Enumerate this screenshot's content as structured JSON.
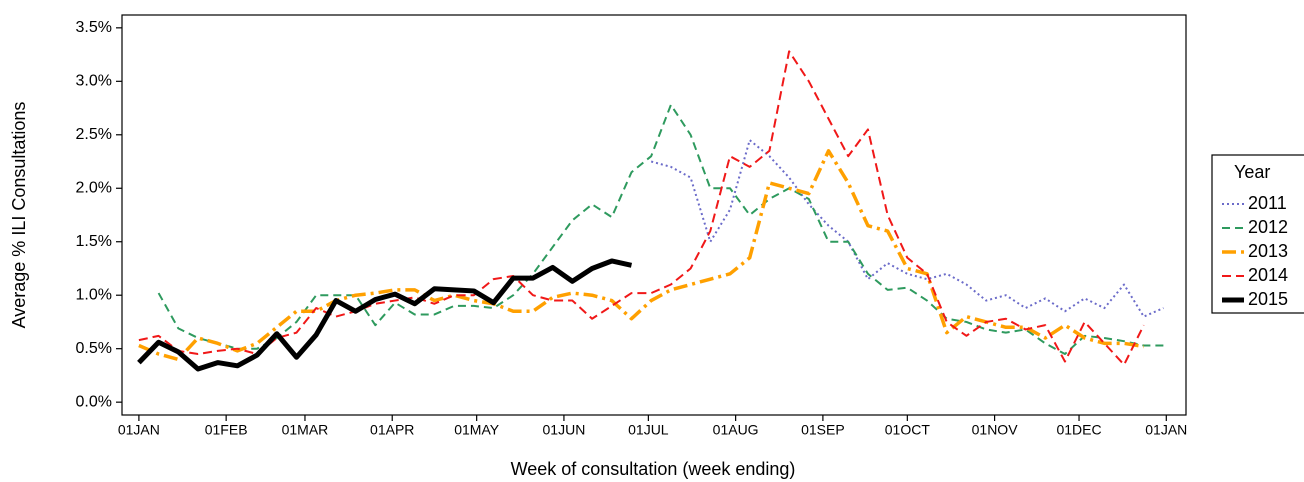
{
  "chart_data": {
    "type": "line",
    "xlabel": "Week of consultation (week ending)",
    "ylabel": "Average % ILI Consultations",
    "legend_title": "Year",
    "legend": "right",
    "x": [
      0,
      7,
      14,
      21,
      28,
      35,
      42,
      49,
      56,
      63,
      70,
      77,
      84,
      91,
      98,
      105,
      112,
      119,
      126,
      133,
      140,
      147,
      154,
      161,
      168,
      175,
      182,
      189,
      196,
      203,
      210,
      217,
      224,
      231,
      238,
      245,
      252,
      259,
      266,
      273,
      280,
      287,
      294,
      301,
      308,
      315,
      322,
      329,
      336,
      343,
      350,
      357,
      364
    ],
    "xlim": [
      -6,
      372
    ],
    "xticks": [
      {
        "value": 0,
        "label": "01JAN"
      },
      {
        "value": 31,
        "label": "01FEB"
      },
      {
        "value": 59,
        "label": "01MAR"
      },
      {
        "value": 90,
        "label": "01APR"
      },
      {
        "value": 120,
        "label": "01MAY"
      },
      {
        "value": 151,
        "label": "01JUN"
      },
      {
        "value": 181,
        "label": "01JUL"
      },
      {
        "value": 212,
        "label": "01AUG"
      },
      {
        "value": 243,
        "label": "01SEP"
      },
      {
        "value": 273,
        "label": "01OCT"
      },
      {
        "value": 304,
        "label": "01NOV"
      },
      {
        "value": 334,
        "label": "01DEC"
      },
      {
        "value": 365,
        "label": "01JAN"
      }
    ],
    "ylim": [
      -0.12,
      3.62
    ],
    "yticks": [
      {
        "value": 0,
        "label": "0.0%"
      },
      {
        "value": 0.5,
        "label": "0.5%"
      },
      {
        "value": 1,
        "label": "1.0%"
      },
      {
        "value": 1.5,
        "label": "1.5%"
      },
      {
        "value": 2,
        "label": "2.0%"
      },
      {
        "value": 2.5,
        "label": "2.5%"
      },
      {
        "value": 3,
        "label": "3.0%"
      },
      {
        "value": 3.5,
        "label": "3.5%"
      }
    ],
    "series": [
      {
        "name": "2011",
        "color": "#6b6bc9",
        "dash": "2,3",
        "width": 2,
        "values": [
          null,
          null,
          null,
          null,
          null,
          null,
          null,
          null,
          null,
          null,
          null,
          null,
          null,
          null,
          null,
          null,
          null,
          null,
          null,
          null,
          null,
          null,
          null,
          null,
          null,
          null,
          2.25,
          2.2,
          2.1,
          1.5,
          1.8,
          2.45,
          2.3,
          2.1,
          1.85,
          1.65,
          1.5,
          1.15,
          1.3,
          1.2,
          1.15,
          1.2,
          1.1,
          0.95,
          1.0,
          0.88,
          0.97,
          0.85,
          0.97,
          0.88,
          1.1,
          0.8,
          0.88
        ]
      },
      {
        "name": "2012",
        "color": "#2e9a5e",
        "dash": "8,5",
        "width": 2,
        "values": [
          null,
          1.02,
          0.69,
          0.6,
          0.55,
          0.5,
          0.5,
          0.6,
          0.75,
          1.0,
          1.0,
          1.0,
          0.72,
          0.93,
          0.82,
          0.82,
          0.9,
          0.9,
          0.88,
          1.0,
          1.2,
          1.45,
          1.7,
          1.85,
          1.73,
          2.15,
          2.3,
          2.78,
          2.5,
          2.0,
          2.0,
          1.75,
          1.9,
          2.0,
          1.9,
          1.5,
          1.5,
          1.2,
          1.05,
          1.07,
          0.95,
          0.78,
          0.75,
          0.68,
          0.65,
          0.68,
          0.55,
          0.45,
          0.62,
          0.6,
          0.57,
          0.53,
          0.53
        ]
      },
      {
        "name": "2013",
        "color": "#ffa000",
        "dash": "14,5,3,5",
        "width": 3.5,
        "values": [
          0.53,
          0.45,
          0.4,
          0.6,
          0.55,
          0.48,
          0.55,
          0.7,
          0.85,
          0.85,
          0.95,
          1.0,
          1.02,
          1.05,
          1.05,
          0.95,
          1.0,
          0.95,
          0.92,
          0.85,
          0.85,
          0.98,
          1.02,
          1.0,
          0.95,
          0.78,
          0.95,
          1.05,
          1.1,
          1.15,
          1.2,
          1.35,
          2.05,
          2.0,
          1.95,
          2.35,
          2.05,
          1.65,
          1.6,
          1.25,
          1.2,
          0.65,
          0.8,
          0.75,
          0.7,
          0.7,
          0.6,
          0.72,
          0.6,
          0.55,
          0.55,
          0.52,
          null
        ]
      },
      {
        "name": "2014",
        "color": "#f01818",
        "dash": "9,5",
        "width": 2,
        "values": [
          0.58,
          0.62,
          0.48,
          0.45,
          0.48,
          0.5,
          0.45,
          0.6,
          0.65,
          0.88,
          0.8,
          0.85,
          0.92,
          0.95,
          0.98,
          0.92,
          1.0,
          1.0,
          1.15,
          1.18,
          1.0,
          0.95,
          0.95,
          0.78,
          0.9,
          1.02,
          1.02,
          1.1,
          1.25,
          1.6,
          2.3,
          2.2,
          2.35,
          3.28,
          3.0,
          2.65,
          2.3,
          2.55,
          1.75,
          1.35,
          1.2,
          0.75,
          0.62,
          0.75,
          0.78,
          0.68,
          0.72,
          0.38,
          0.75,
          0.55,
          0.35,
          0.72,
          null
        ]
      },
      {
        "name": "2015",
        "color": "#000000",
        "dash": "none",
        "width": 5,
        "values": [
          0.37,
          0.56,
          0.47,
          0.31,
          0.37,
          0.34,
          0.44,
          0.64,
          0.42,
          0.63,
          0.95,
          0.85,
          0.96,
          1.01,
          0.92,
          1.06,
          1.05,
          1.04,
          0.93,
          1.16,
          1.16,
          1.26,
          1.13,
          1.25,
          1.32,
          1.28,
          null,
          null,
          null,
          null,
          null,
          null,
          null,
          null,
          null,
          null,
          null,
          null,
          null,
          null,
          null,
          null,
          null,
          null,
          null,
          null,
          null,
          null,
          null,
          null,
          null,
          null,
          null
        ]
      }
    ]
  }
}
